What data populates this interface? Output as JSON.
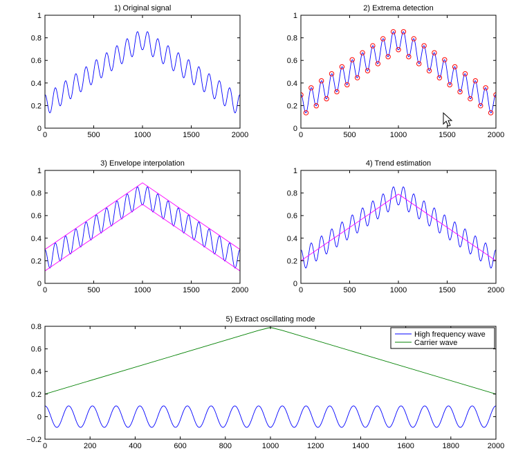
{
  "figure": {
    "background": "#ffffff"
  },
  "colors": {
    "signal": "#0000ff",
    "envelope": "#ff00ff",
    "trend": "#ff00ff",
    "extrema": "#ff0000",
    "carrier": "#008000"
  },
  "cursor": {
    "icon": "mouse-pointer-icon"
  },
  "chart_data": [
    {
      "id": "p1",
      "type": "line",
      "title": "1) Original signal",
      "xlim": [
        0,
        2000
      ],
      "ylim": [
        0,
        1
      ],
      "xticks": [
        0,
        500,
        1000,
        1500,
        2000
      ],
      "xtick_labels": [
        "0",
        "500",
        "1000",
        "1500",
        "2000"
      ],
      "yticks": [
        0,
        0.2,
        0.4,
        0.6,
        0.8,
        1
      ],
      "ytick_labels": [
        "0",
        "0.2",
        "0.4",
        "0.6",
        "0.8",
        "1"
      ],
      "series": [
        {
          "kind": "oscillating",
          "trend": {
            "x": [
              0,
              1000,
              2000
            ],
            "y": [
              0.2,
              0.79,
              0.2
            ]
          },
          "amplitude": 0.095,
          "period": 105.26,
          "color": "#0000ff"
        }
      ]
    },
    {
      "id": "p2",
      "type": "line",
      "title": "2) Extrema detection",
      "xlim": [
        0,
        2000
      ],
      "ylim": [
        0,
        1
      ],
      "xticks": [
        0,
        500,
        1000,
        1500,
        2000
      ],
      "xtick_labels": [
        "0",
        "500",
        "1000",
        "1500",
        "2000"
      ],
      "yticks": [
        0,
        0.2,
        0.4,
        0.6,
        0.8,
        1
      ],
      "ytick_labels": [
        "0",
        "0.2",
        "0.4",
        "0.6",
        "0.8",
        "1"
      ],
      "series": [
        {
          "kind": "oscillating",
          "trend": {
            "x": [
              0,
              1000,
              2000
            ],
            "y": [
              0.2,
              0.79,
              0.2
            ]
          },
          "amplitude": 0.095,
          "period": 105.26,
          "color": "#0000ff",
          "mark_extrema": true,
          "marker_color": "#ff0000"
        }
      ]
    },
    {
      "id": "p3",
      "type": "line",
      "title": "3) Envelope interpolation",
      "xlim": [
        0,
        2000
      ],
      "ylim": [
        0,
        1
      ],
      "xticks": [
        0,
        500,
        1000,
        1500,
        2000
      ],
      "xtick_labels": [
        "0",
        "500",
        "1000",
        "1500",
        "2000"
      ],
      "yticks": [
        0,
        0.2,
        0.4,
        0.6,
        0.8,
        1
      ],
      "ytick_labels": [
        "0",
        "0.2",
        "0.4",
        "0.6",
        "0.8",
        "1"
      ],
      "series": [
        {
          "kind": "oscillating",
          "trend": {
            "x": [
              0,
              1000,
              2000
            ],
            "y": [
              0.2,
              0.79,
              0.2
            ]
          },
          "amplitude": 0.095,
          "period": 105.26,
          "color": "#0000ff"
        },
        {
          "kind": "polyline",
          "x": [
            0,
            1000,
            2000
          ],
          "y": [
            0.3,
            0.89,
            0.3
          ],
          "color": "#ff00ff"
        },
        {
          "kind": "polyline",
          "x": [
            0,
            1000,
            2000
          ],
          "y": [
            0.11,
            0.7,
            0.11
          ],
          "color": "#ff00ff"
        }
      ]
    },
    {
      "id": "p4",
      "type": "line",
      "title": "4) Trend estimation",
      "xlim": [
        0,
        2000
      ],
      "ylim": [
        0,
        1
      ],
      "xticks": [
        0,
        500,
        1000,
        1500,
        2000
      ],
      "xtick_labels": [
        "0",
        "500",
        "1000",
        "1500",
        "2000"
      ],
      "yticks": [
        0,
        0.2,
        0.4,
        0.6,
        0.8,
        1
      ],
      "ytick_labels": [
        "0",
        "0.2",
        "0.4",
        "0.6",
        "0.8",
        "1"
      ],
      "series": [
        {
          "kind": "oscillating",
          "trend": {
            "x": [
              0,
              1000,
              2000
            ],
            "y": [
              0.2,
              0.79,
              0.2
            ]
          },
          "amplitude": 0.095,
          "period": 105.26,
          "color": "#0000ff"
        },
        {
          "kind": "polyline",
          "x": [
            0,
            1000,
            2000
          ],
          "y": [
            0.2,
            0.79,
            0.2
          ],
          "color": "#ff00ff"
        }
      ]
    },
    {
      "id": "p5",
      "type": "line",
      "title": "5) Extract oscillating mode",
      "xlim": [
        0,
        2000
      ],
      "ylim": [
        -0.2,
        0.8
      ],
      "xticks": [
        0,
        200,
        400,
        600,
        800,
        1000,
        1200,
        1400,
        1600,
        1800,
        2000
      ],
      "xtick_labels": [
        "0",
        "200",
        "400",
        "600",
        "800",
        "1000",
        "1200",
        "1400",
        "1600",
        "1800",
        "2000"
      ],
      "yticks": [
        -0.2,
        0,
        0.2,
        0.4,
        0.6,
        0.8
      ],
      "ytick_labels": [
        "−0.2",
        "0",
        "0.2",
        "0.4",
        "0.6",
        "0.8"
      ],
      "legend": {
        "position": "top-right",
        "entries": [
          {
            "label": "High frequency wave",
            "color": "#0000ff"
          },
          {
            "label": "Carrier wave",
            "color": "#008000"
          }
        ]
      },
      "series": [
        {
          "name": "High frequency wave",
          "kind": "oscillating",
          "trend": {
            "x": [
              0,
              2000
            ],
            "y": [
              0,
              0
            ]
          },
          "amplitude": 0.095,
          "period": 105.26,
          "color": "#0000ff"
        },
        {
          "name": "Carrier wave",
          "kind": "polyline",
          "x": [
            0,
            950,
            1000,
            1050,
            2000
          ],
          "y": [
            0.2,
            0.765,
            0.79,
            0.765,
            0.2
          ],
          "color": "#008000"
        }
      ]
    }
  ]
}
